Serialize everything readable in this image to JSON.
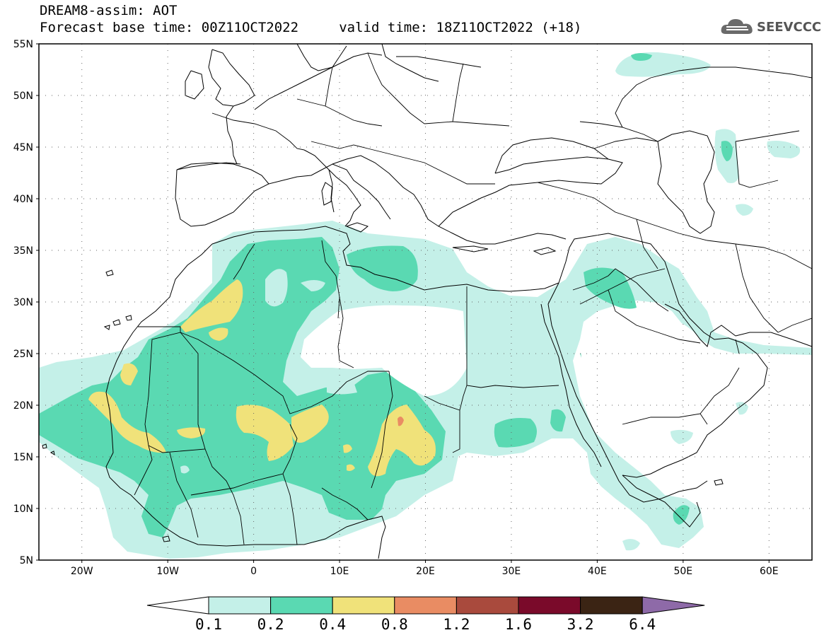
{
  "header": {
    "line1": "DREAM8-assim: AOT",
    "line2": "Forecast base time: 00Z11OCT2022     valid time: 18Z11OCT2022 (+18)",
    "logo_text": "SEEVCCC",
    "logo_icon": "cloud-icon"
  },
  "map": {
    "lon_range": [
      -25,
      65
    ],
    "lat_range": [
      5,
      55
    ],
    "lat_labels": [
      "55N",
      "50N",
      "45N",
      "40N",
      "35N",
      "30N",
      "25N",
      "20N",
      "15N",
      "10N",
      "5N"
    ],
    "lon_labels": [
      "20W",
      "10W",
      "0",
      "10E",
      "20E",
      "30E",
      "40E",
      "50E",
      "60E"
    ],
    "grid": "dotted"
  },
  "legend": {
    "thresholds": [
      "0.1",
      "0.2",
      "0.4",
      "0.8",
      "1.2",
      "1.6",
      "3.2",
      "6.4"
    ],
    "colors": [
      "#ffffff",
      "#c4f0e8",
      "#5ad9b2",
      "#f0e27a",
      "#e98c63",
      "#a94a3d",
      "#7a0a2a",
      "#3b2414",
      "#8e6aa8"
    ]
  },
  "colors": {
    "aot_0_1": "#c4f0e8",
    "aot_0_2": "#5ad9b2",
    "aot_0_4": "#f0e27a",
    "aot_0_8": "#e98c63"
  }
}
